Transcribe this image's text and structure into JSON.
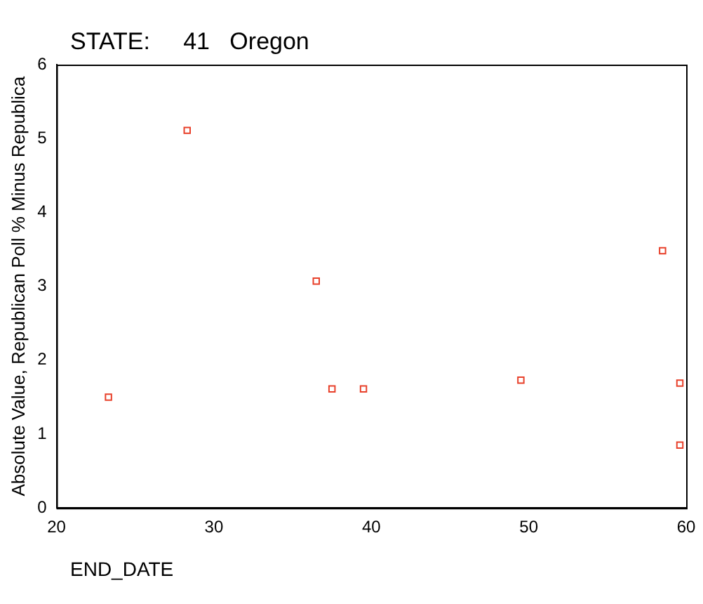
{
  "chart_data": {
    "type": "scatter",
    "title": "STATE:     41   Oregon",
    "xlabel": "END_DATE",
    "ylabel": "Absolute Value, Republican Poll % Minus Republica",
    "series": [
      {
        "color": "#e8402a",
        "x": [
          23.3,
          28.3,
          36.5,
          37.5,
          39.5,
          49.5,
          58.5,
          59.6,
          59.6
        ],
        "values": [
          1.5,
          5.11,
          3.07,
          1.61,
          1.61,
          1.73,
          3.48,
          1.69,
          0.85
        ]
      }
    ],
    "xlim": [
      20,
      60
    ],
    "xticks": [
      20,
      30,
      40,
      50,
      60
    ],
    "ylim": [
      0,
      6
    ],
    "yticks": [
      0,
      1,
      2,
      3,
      4,
      5,
      6
    ],
    "grid": false,
    "legend": false,
    "marker": "square"
  }
}
